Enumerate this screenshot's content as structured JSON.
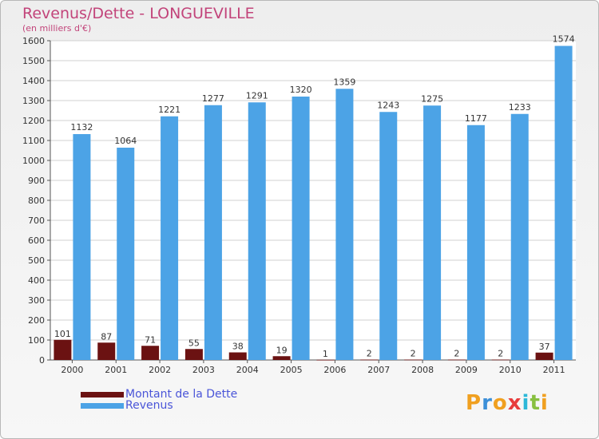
{
  "header": {
    "title": "Revenus/Dette - LONGUEVILLE",
    "subtitle": "(en milliers d'€)"
  },
  "legend": {
    "items": [
      {
        "label": "Montant de la Dette",
        "color": "#6b1212"
      },
      {
        "label": "Revenus",
        "color": "#4ca3e6"
      }
    ]
  },
  "brand": {
    "text": "Proxiti",
    "letters": [
      "P",
      "r",
      "o",
      "x",
      "i",
      "t",
      "i"
    ],
    "colors": [
      "#f0a020",
      "#3c8fd8",
      "#f0a020",
      "#e83c3c",
      "#2db8d8",
      "#88c040",
      "#f0a020"
    ]
  },
  "chart_data": {
    "type": "bar",
    "title": "Revenus/Dette - LONGUEVILLE",
    "subtitle": "(en milliers d'€)",
    "categories": [
      "2000",
      "2001",
      "2002",
      "2003",
      "2004",
      "2005",
      "2006",
      "2007",
      "2008",
      "2009",
      "2010",
      "2011"
    ],
    "series": [
      {
        "name": "Montant de la Dette",
        "color": "#6b1212",
        "values": [
          101,
          87,
          71,
          55,
          38,
          19,
          1,
          2,
          2,
          2,
          2,
          37
        ]
      },
      {
        "name": "Revenus",
        "color": "#4ca3e6",
        "values": [
          1132,
          1064,
          1221,
          1277,
          1291,
          1320,
          1359,
          1243,
          1275,
          1177,
          1233,
          1574
        ]
      }
    ],
    "ylim": [
      0,
      1600
    ],
    "yticks": [
      0,
      100,
      200,
      300,
      400,
      500,
      600,
      700,
      800,
      900,
      1000,
      1100,
      1200,
      1300,
      1400,
      1500,
      1600
    ],
    "grid": true,
    "legend_position": "bottom-left"
  }
}
